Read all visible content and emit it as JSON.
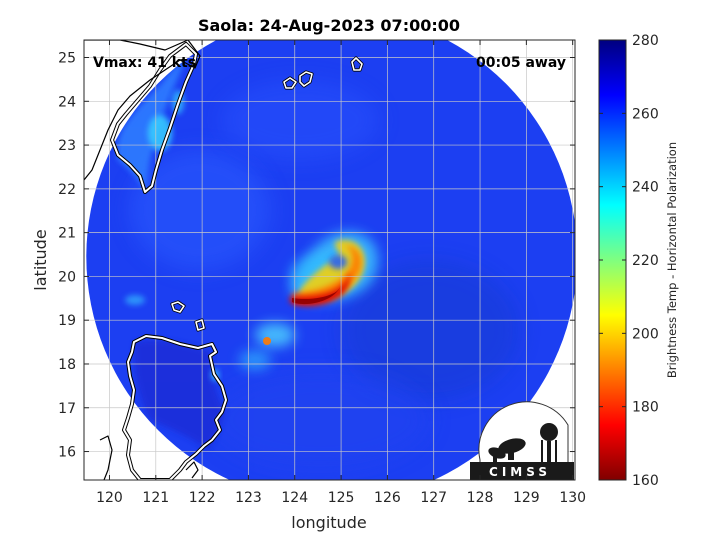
{
  "chart_data": {
    "type": "heatmap",
    "title": "Saola: 24-Aug-2023 07:00:00",
    "xlabel": "longitude",
    "ylabel": "latitude",
    "xlim": [
      119.45,
      130.05
    ],
    "ylim": [
      15.35,
      25.4
    ],
    "x_ticks": [
      "120",
      "121",
      "122",
      "123",
      "124",
      "125",
      "126",
      "127",
      "128",
      "129",
      "130"
    ],
    "x_tick_values": [
      120,
      121,
      122,
      123,
      124,
      125,
      126,
      127,
      128,
      129,
      130
    ],
    "y_ticks": [
      "16",
      "17",
      "18",
      "19",
      "20",
      "21",
      "22",
      "23",
      "24",
      "25"
    ],
    "y_tick_values": [
      16,
      17,
      18,
      19,
      20,
      21,
      22,
      23,
      24,
      25
    ],
    "grid": true,
    "annotations": {
      "vmax": "Vmax: 41 kts",
      "time_away": "00:05 away"
    },
    "colorbar": {
      "label": "Brightness Temp - Horizontal Polarization",
      "range": [
        160,
        280
      ],
      "ticks": [
        "160",
        "180",
        "200",
        "220",
        "240",
        "260",
        "280"
      ],
      "tick_values": [
        160,
        180,
        200,
        220,
        240,
        260,
        280
      ],
      "colormap": "jet"
    },
    "swath": {
      "center_lon": 124.8,
      "center_lat": 20.45,
      "radius_deg": 5.3,
      "background_tb": 262
    },
    "features": [
      {
        "name": "eyewall-band",
        "tb_min": 175
      },
      {
        "name": "outer-rainband",
        "tb_min": 205
      },
      {
        "name": "taiwan-land",
        "tb_min": 240
      },
      {
        "name": "luzon-land",
        "tb_min": 270
      }
    ],
    "logo_text": "CIMSS"
  }
}
